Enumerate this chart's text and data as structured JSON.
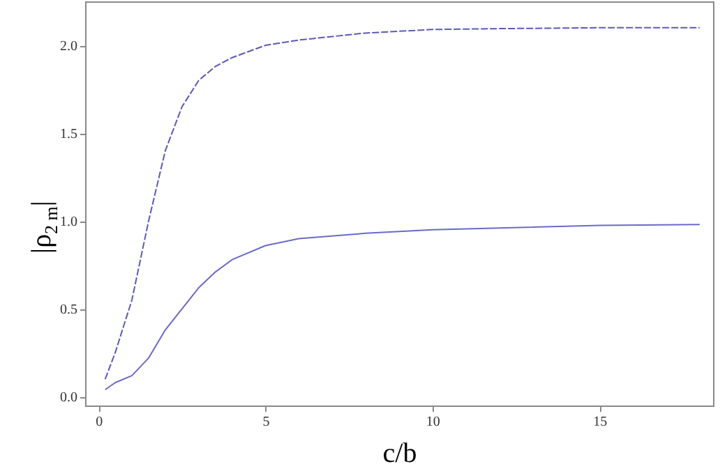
{
  "chart_data": {
    "type": "line",
    "xlabel": "c/b",
    "ylabel": "|ρ$_{2 m}$|",
    "xlim": [
      -0.4,
      18.4
    ],
    "ylim": [
      -0.05,
      2.25
    ],
    "xticks": [
      0,
      5,
      10,
      15
    ],
    "yticks": [
      {
        "value": 0,
        "label": "0.0"
      },
      {
        "value": 0.5,
        "label": "0.5"
      },
      {
        "value": 1,
        "label": "1.0"
      },
      {
        "value": 1.5,
        "label": "1.5"
      },
      {
        "value": 2,
        "label": "2.0"
      }
    ],
    "grid": false,
    "series": [
      {
        "color": "#5a5ab8",
        "line_style": "dashed",
        "x": [
          0.2,
          0.5,
          1,
          1.5,
          2,
          2.5,
          3,
          3.5,
          4,
          5,
          6,
          8,
          10,
          12,
          15,
          18
        ],
        "values": [
          0.1,
          0.25,
          0.55,
          1.0,
          1.4,
          1.65,
          1.8,
          1.88,
          1.93,
          2.0,
          2.03,
          2.07,
          2.09,
          2.095,
          2.1,
          2.1
        ]
      },
      {
        "color": "#6a6ac8",
        "line_style": "solid",
        "x": [
          0.2,
          0.5,
          1,
          1.5,
          2,
          2.5,
          3,
          3.5,
          4,
          5,
          6,
          8,
          10,
          12,
          15,
          18
        ],
        "values": [
          0.04,
          0.08,
          0.12,
          0.22,
          0.38,
          0.5,
          0.62,
          0.71,
          0.78,
          0.86,
          0.9,
          0.93,
          0.95,
          0.96,
          0.975,
          0.98
        ]
      }
    ]
  }
}
